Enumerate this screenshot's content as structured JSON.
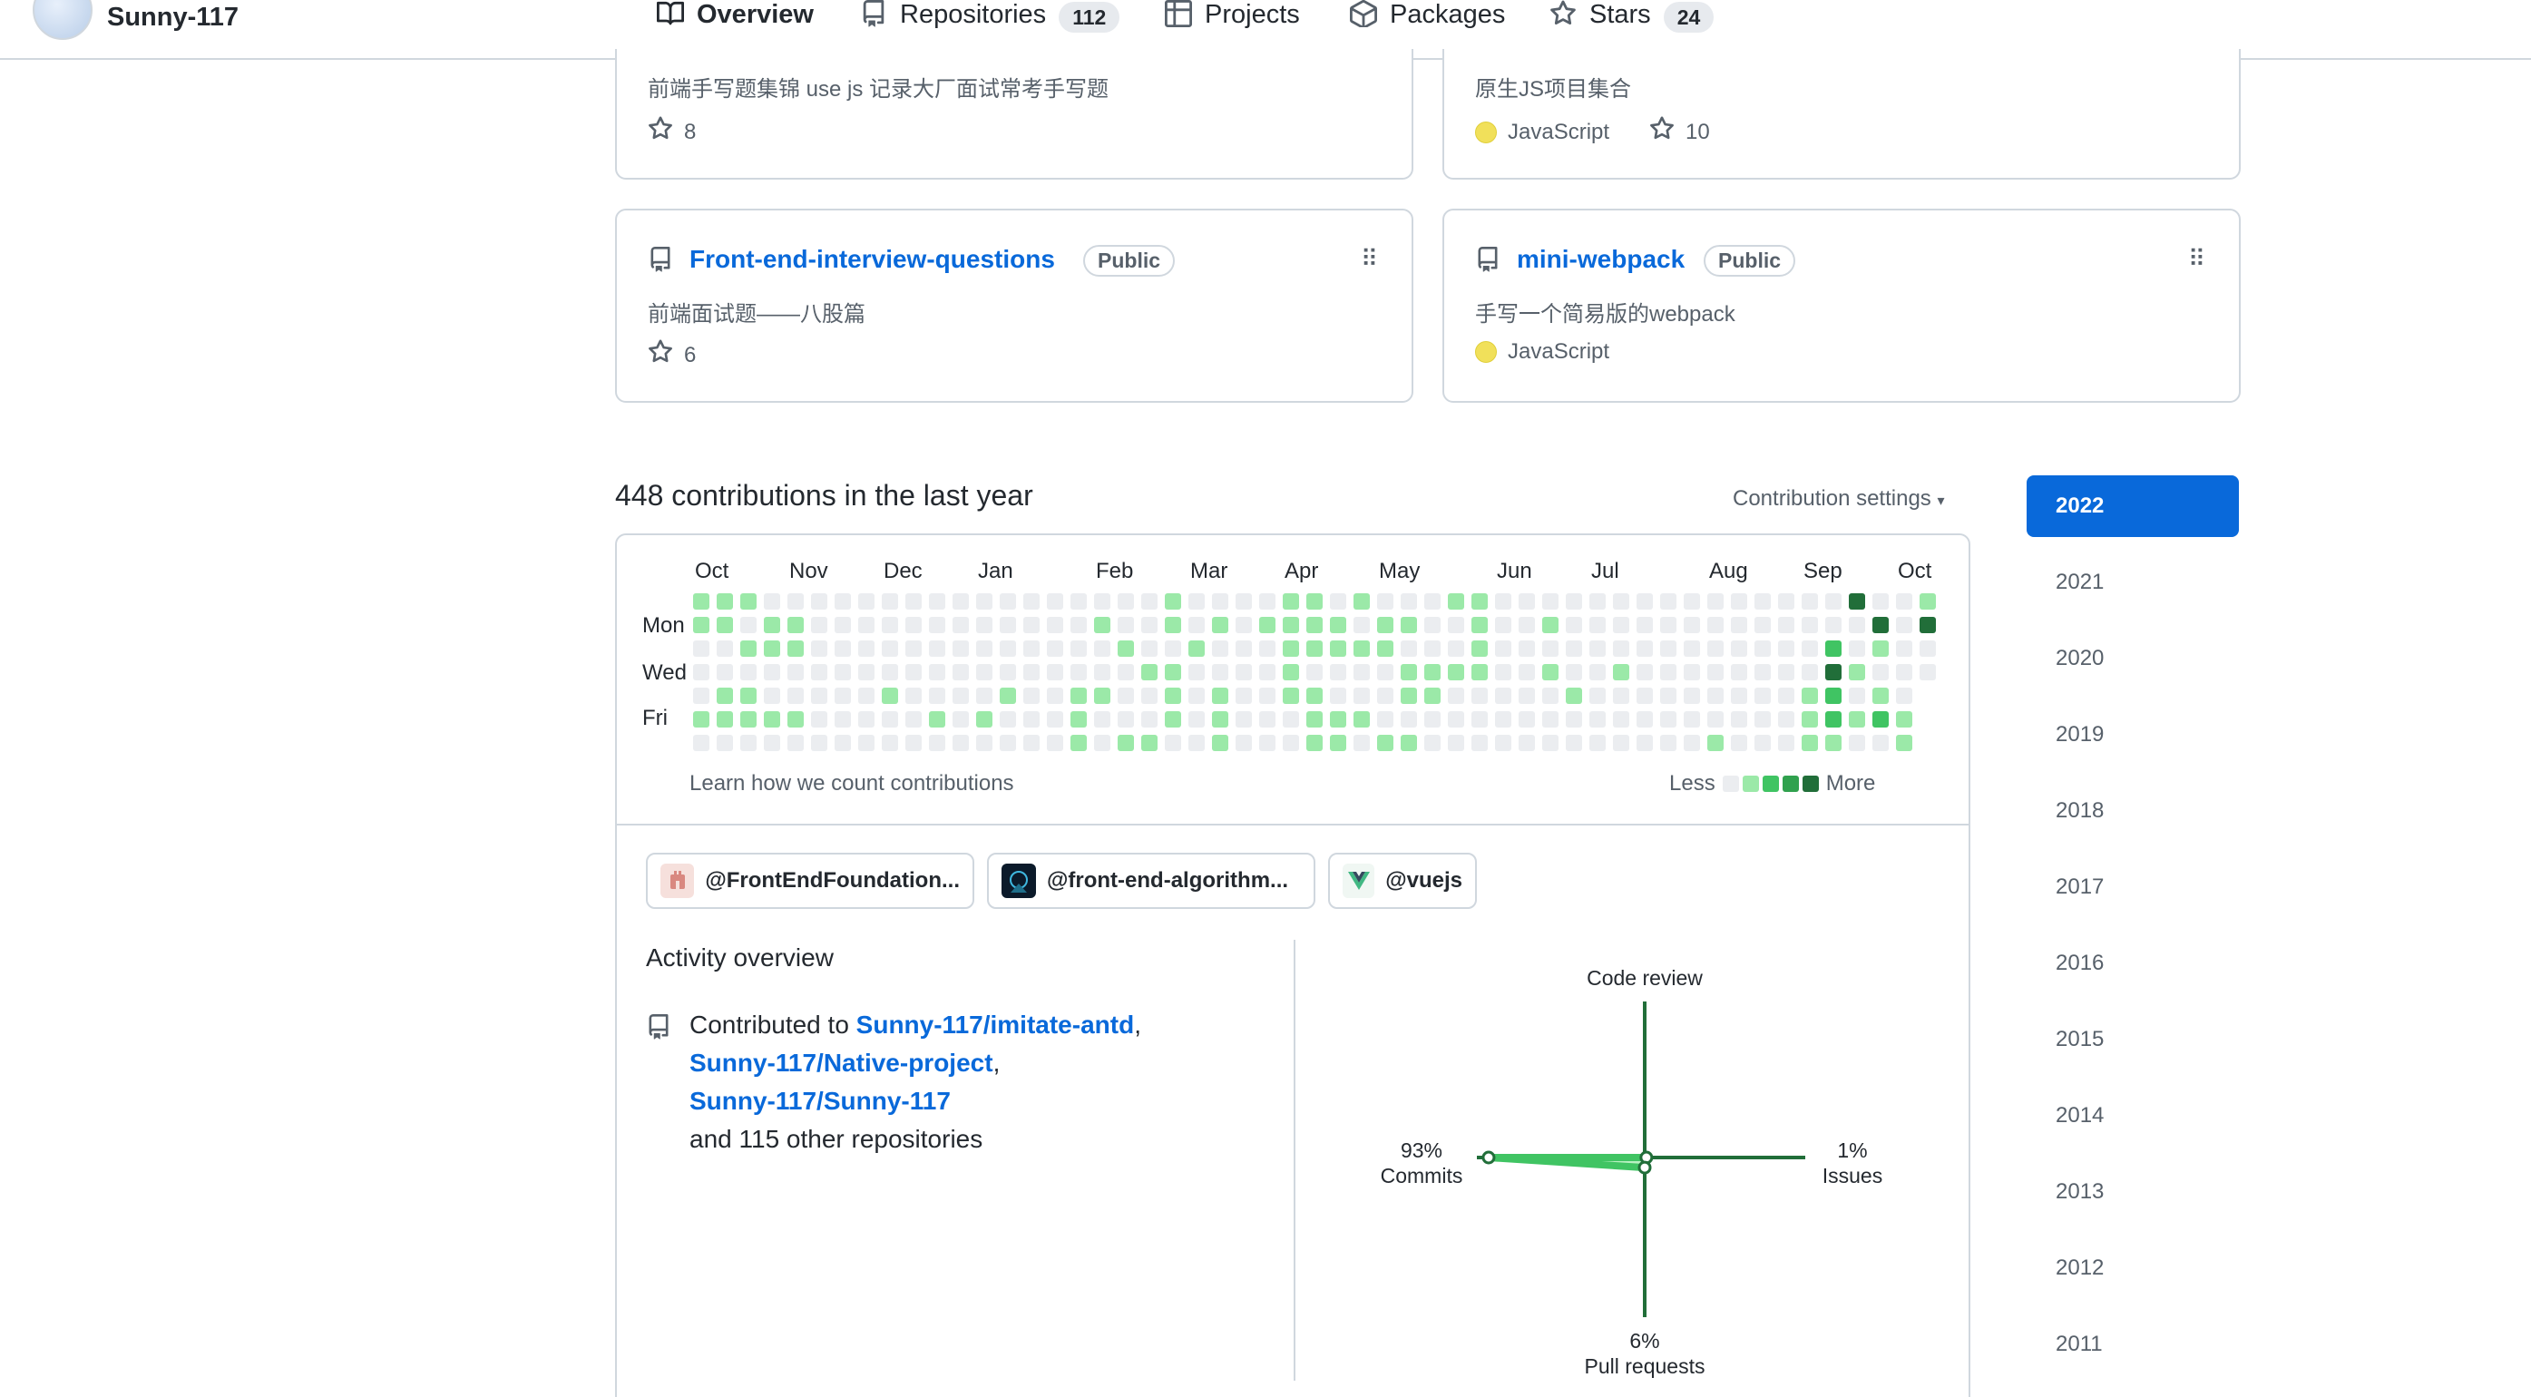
{
  "profile": {
    "username": "Sunny-117"
  },
  "tabs": [
    {
      "label": "Overview",
      "icon": "book-icon"
    },
    {
      "label": "Repositories",
      "icon": "repo-icon",
      "count": "112"
    },
    {
      "label": "Projects",
      "icon": "table-icon"
    },
    {
      "label": "Packages",
      "icon": "package-icon"
    },
    {
      "label": "Stars",
      "icon": "star-icon",
      "count": "24"
    }
  ],
  "pinned": [
    {
      "description": "前端手写题集锦 use js 记录大厂面试常考手写题",
      "stars": "8"
    },
    {
      "description": "原生JS项目集合",
      "language": "JavaScript",
      "stars": "10"
    },
    {
      "name": "Front-end-interview-questions",
      "visibility": "Public",
      "description": "前端面试题——八股篇",
      "stars": "6"
    },
    {
      "name": "mini-webpack",
      "visibility": "Public",
      "description": "手写一个简易版的webpack",
      "language": "JavaScript"
    }
  ],
  "contributions": {
    "title": "448 contributions in the last year",
    "settings_label": "Contribution settings",
    "months": [
      "Oct",
      "Nov",
      "Dec",
      "Jan",
      "Feb",
      "Mar",
      "Apr",
      "May",
      "Jun",
      "Jul",
      "Aug",
      "Sep",
      "Oct"
    ],
    "days": [
      "Mon",
      "Wed",
      "Fri"
    ],
    "learn_link": "Learn how we count contributions",
    "legend_less": "Less",
    "legend_more": "More",
    "colors": [
      "#ebedf0",
      "#9be9a8",
      "#40c463",
      "#30a14e",
      "#216e39"
    ]
  },
  "orgs": [
    {
      "label": "@FrontEndFoundation...",
      "icon": "org-avatar-icon"
    },
    {
      "label": "@front-end-algorithm...",
      "icon": "org-avatar-icon"
    },
    {
      "label": "@vuejs",
      "icon": "vue-logo-icon"
    }
  ],
  "activity": {
    "title": "Activity overview",
    "contributed_prefix": "Contributed to",
    "repos": [
      "Sunny-117/imitate-antd",
      "Sunny-117/Native-project",
      "Sunny-117/Sunny-117"
    ],
    "comma": ",",
    "other": "and 115 other repositories",
    "chart": {
      "code_review": "Code review",
      "commits_pct": "93%",
      "commits_label": "Commits",
      "issues_pct": "1%",
      "issues_label": "Issues",
      "pr_pct": "6%",
      "pr_label": "Pull requests"
    }
  },
  "chart_data": {
    "type": "radar",
    "categories": [
      "Code review",
      "Issues",
      "Pull requests",
      "Commits"
    ],
    "values": [
      0,
      1,
      6,
      93
    ]
  },
  "years": [
    "2022",
    "2021",
    "2020",
    "2019",
    "2018",
    "2017",
    "2016",
    "2015",
    "2014",
    "2013",
    "2012",
    "2011"
  ]
}
